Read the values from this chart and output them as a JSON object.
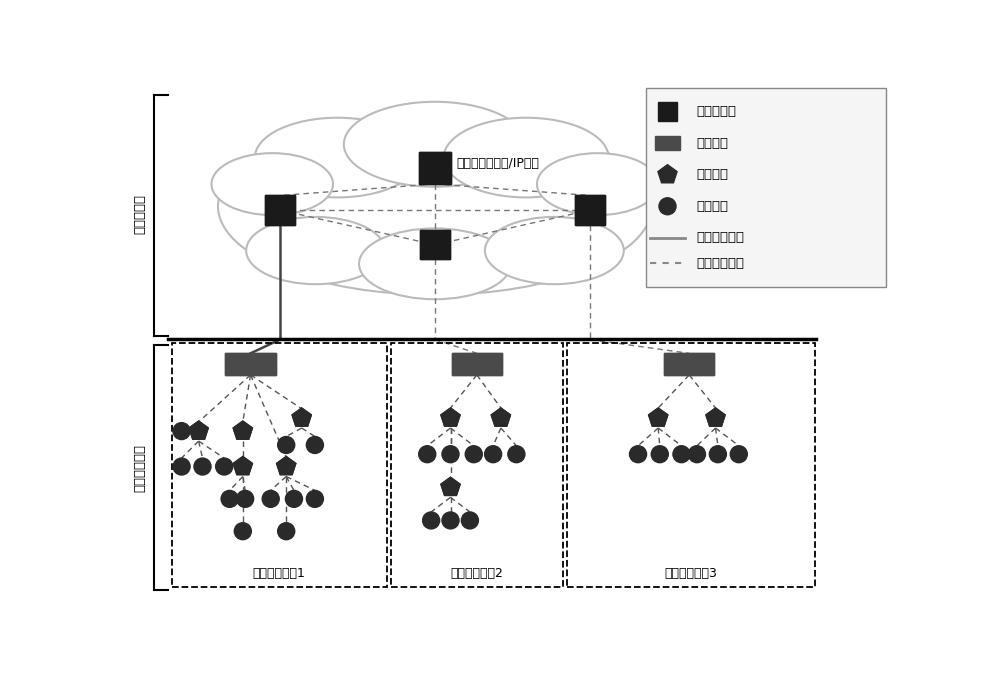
{
  "bg_color": "#ffffff",
  "legend_items": [
    {
      "label": "主控计算机",
      "type": "square_dark"
    },
    {
      "label": "网关设备",
      "type": "square_gray"
    },
    {
      "label": "路由设备",
      "type": "pentagon"
    },
    {
      "label": "现场设备",
      "type": "circle"
    },
    {
      "label": "有线通信线路",
      "type": "solid_line"
    },
    {
      "label": "无线通信线路",
      "type": "dashed_line"
    }
  ],
  "label_inter_network": "工厂间网络",
  "label_field_network": "工业现场网络",
  "label_cloud": "工厂间无线网络/IP网络",
  "label_net1": "工业无线网络1",
  "label_net2": "工业无线网络2",
  "label_net3": "工业无线网络3",
  "dark_color": "#1a1a1a",
  "gateway_color": "#4a4a4a",
  "node_color": "#2a2a2a",
  "router_color": "#2a2a2a",
  "cloud_edge_color": "#bbbbbb",
  "line_color": "#555555",
  "dashed_color": "#555555"
}
